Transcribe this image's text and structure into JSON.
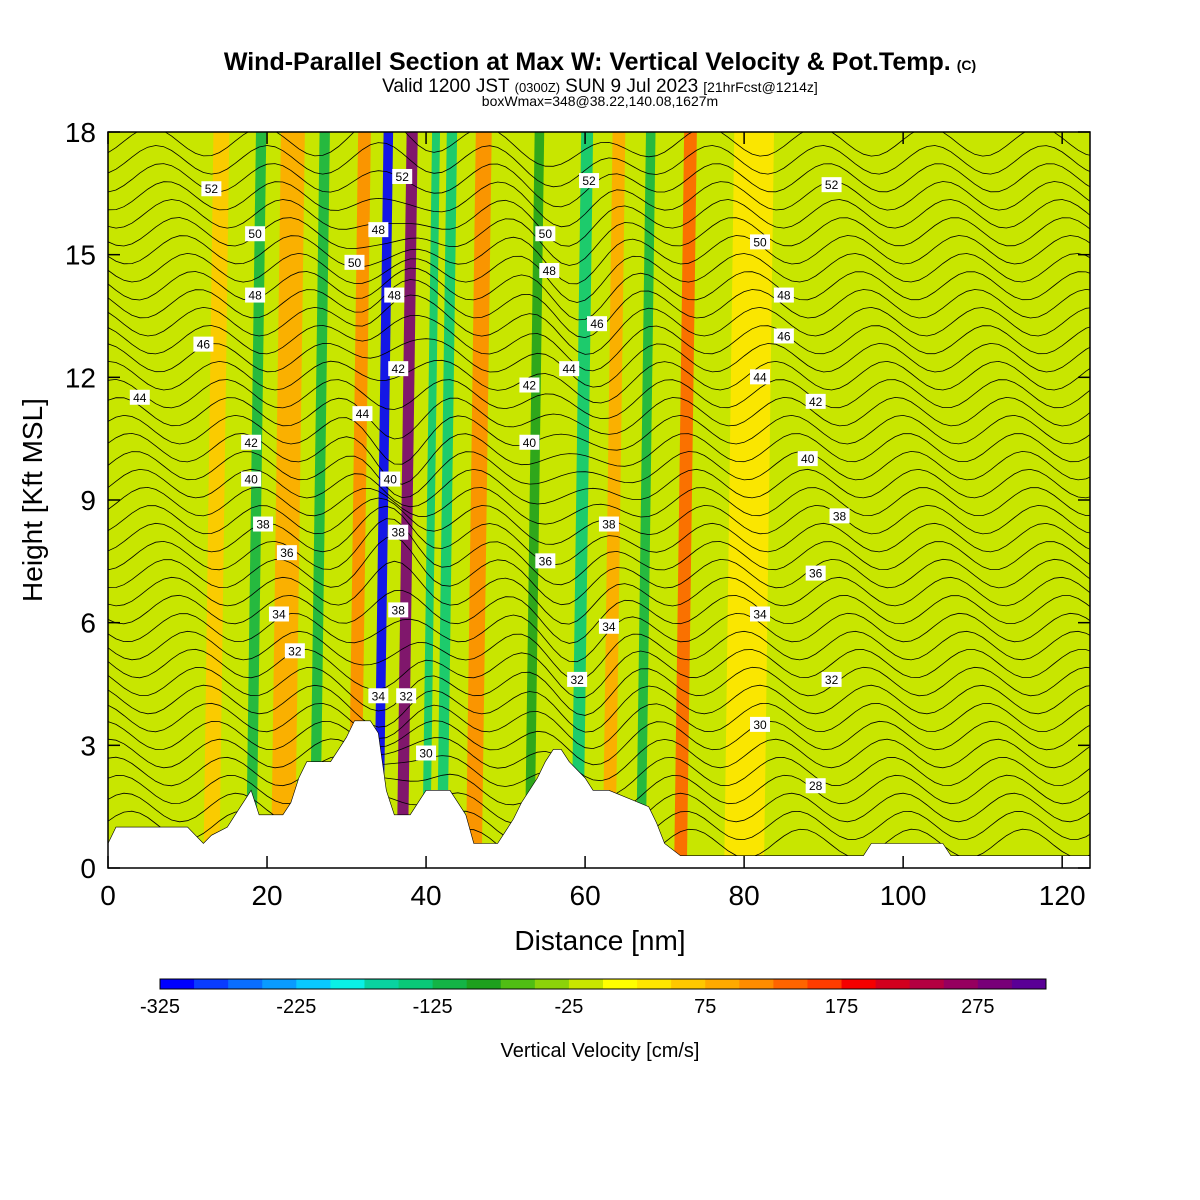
{
  "title": {
    "main": "Wind-Parallel Section at Max W: Vertical Velocity & Pot.Temp.",
    "copyright": "(C)",
    "valid_prefix": "Valid 1200 JST",
    "valid_utc": "(0300Z)",
    "valid_date": "SUN 9 Jul 2023",
    "forecast": "[21hrFcst@1214z]",
    "box_info": "boxWmax=348@38.22,140.08,1627m"
  },
  "chart_data": {
    "type": "heatmap",
    "xlabel": "Distance [nm]",
    "ylabel": "Height [Kft MSL]",
    "xlim": [
      0,
      123.5
    ],
    "ylim": [
      0,
      18
    ],
    "x_ticks": [
      0,
      20,
      40,
      60,
      80,
      100,
      120
    ],
    "x_tick_labels": [
      "0",
      "20",
      "40",
      "60",
      "80",
      "100",
      "120"
    ],
    "y_ticks": [
      0,
      3,
      6,
      9,
      12,
      15,
      18
    ],
    "y_tick_labels": [
      "0",
      "3",
      "6",
      "9",
      "12",
      "15",
      "18"
    ],
    "colorbar": {
      "label": "Vertical Velocity [cm/s]",
      "min": -325,
      "step": 25,
      "colors": [
        "#0000ff",
        "#0a3cff",
        "#0a6eff",
        "#0a9bff",
        "#0ac8ff",
        "#0af0e6",
        "#0ad2a0",
        "#0ac878",
        "#14b446",
        "#1ea01e",
        "#50be14",
        "#8cd20a",
        "#c8e600",
        "#ffff00",
        "#ffe600",
        "#ffc800",
        "#ffaa00",
        "#ff8c00",
        "#ff6400",
        "#ff3c00",
        "#f50000",
        "#d2001e",
        "#b40041",
        "#96005f",
        "#780078",
        "#5a0096"
      ],
      "tick_values": [
        -325,
        -225,
        -125,
        -25,
        75,
        175,
        275
      ],
      "tick_labels": [
        "-325",
        "-225",
        "-125",
        "-25",
        "75",
        "175",
        "275"
      ]
    },
    "vertical_velocity_bands": [
      {
        "x": 7,
        "w": 2.0,
        "value": -20
      },
      {
        "x": 13,
        "w": 2.0,
        "value": 60
      },
      {
        "x": 18,
        "w": 1.3,
        "value": -110
      },
      {
        "x": 22,
        "w": 3.0,
        "value": 90
      },
      {
        "x": 26,
        "w": 1.3,
        "value": -120
      },
      {
        "x": 31,
        "w": 1.6,
        "value": 120
      },
      {
        "x": 34,
        "w": 1.2,
        "value": -320
      },
      {
        "x": 37,
        "w": 1.4,
        "value": 290
      },
      {
        "x": 40,
        "w": 1.0,
        "value": -150
      },
      {
        "x": 42,
        "w": 1.3,
        "value": -140
      },
      {
        "x": 46,
        "w": 2.0,
        "value": 110
      },
      {
        "x": 53,
        "w": 1.2,
        "value": -100
      },
      {
        "x": 59,
        "w": 1.5,
        "value": -140
      },
      {
        "x": 63,
        "w": 1.6,
        "value": 90
      },
      {
        "x": 67,
        "w": 1.2,
        "value": -110
      },
      {
        "x": 72,
        "w": 1.6,
        "value": 140
      },
      {
        "x": 80,
        "w": 5.0,
        "value": 30
      },
      {
        "x": 95,
        "w": 3.0,
        "value": -20
      },
      {
        "x": 112,
        "w": 6.0,
        "value": -15
      }
    ],
    "terrain": {
      "x": [
        0,
        1,
        10,
        12,
        13,
        15,
        16,
        17,
        18,
        19,
        20,
        22,
        23,
        24,
        25,
        28,
        29,
        30,
        31,
        33,
        34,
        35,
        35.5,
        36,
        38,
        39,
        40,
        43,
        44,
        45,
        46,
        48,
        49,
        50,
        51,
        52,
        54,
        55,
        56,
        57,
        58,
        60,
        61,
        62,
        63,
        68,
        69,
        70,
        72,
        74,
        75,
        95,
        96,
        105,
        106,
        123.5
      ],
      "height": [
        0.6,
        1.0,
        1.0,
        0.6,
        0.8,
        1.0,
        1.3,
        1.6,
        1.9,
        1.3,
        1.3,
        1.3,
        1.6,
        2.2,
        2.6,
        2.6,
        2.9,
        3.2,
        3.6,
        3.6,
        3.3,
        1.9,
        1.6,
        1.3,
        1.3,
        1.6,
        1.9,
        1.9,
        1.6,
        1.3,
        0.6,
        0.6,
        0.6,
        0.9,
        1.2,
        1.6,
        2.2,
        2.6,
        2.9,
        2.9,
        2.6,
        2.2,
        1.9,
        1.9,
        1.9,
        1.5,
        1.1,
        0.6,
        0.3,
        0.3,
        0.3,
        0.3,
        0.6,
        0.6,
        0.3,
        0.3
      ]
    },
    "contour_labels": [
      {
        "x": 13,
        "y": 16.6,
        "text": "52"
      },
      {
        "x": 18.5,
        "y": 15.5,
        "text": "50"
      },
      {
        "x": 18.5,
        "y": 14.0,
        "text": "48"
      },
      {
        "x": 12,
        "y": 12.8,
        "text": "46"
      },
      {
        "x": 4,
        "y": 11.5,
        "text": "44"
      },
      {
        "x": 18,
        "y": 10.4,
        "text": "42"
      },
      {
        "x": 18,
        "y": 9.5,
        "text": "40"
      },
      {
        "x": 19.5,
        "y": 8.4,
        "text": "38"
      },
      {
        "x": 22.5,
        "y": 7.7,
        "text": "36"
      },
      {
        "x": 21.5,
        "y": 6.2,
        "text": "34"
      },
      {
        "x": 23.5,
        "y": 5.3,
        "text": "32"
      },
      {
        "x": 31,
        "y": 14.8,
        "text": "50"
      },
      {
        "x": 34,
        "y": 15.6,
        "text": "48"
      },
      {
        "x": 37,
        "y": 16.9,
        "text": "52"
      },
      {
        "x": 36,
        "y": 14.0,
        "text": "48"
      },
      {
        "x": 36.5,
        "y": 12.2,
        "text": "42"
      },
      {
        "x": 32,
        "y": 11.1,
        "text": "44"
      },
      {
        "x": 35.5,
        "y": 9.5,
        "text": "40"
      },
      {
        "x": 36.5,
        "y": 8.2,
        "text": "38"
      },
      {
        "x": 36.5,
        "y": 6.3,
        "text": "38"
      },
      {
        "x": 34,
        "y": 4.2,
        "text": "34"
      },
      {
        "x": 37.5,
        "y": 4.2,
        "text": "32"
      },
      {
        "x": 40,
        "y": 2.8,
        "text": "30"
      },
      {
        "x": 60.5,
        "y": 16.8,
        "text": "52"
      },
      {
        "x": 55,
        "y": 15.5,
        "text": "50"
      },
      {
        "x": 55.5,
        "y": 14.6,
        "text": "48"
      },
      {
        "x": 61.5,
        "y": 13.3,
        "text": "46"
      },
      {
        "x": 58,
        "y": 12.2,
        "text": "44"
      },
      {
        "x": 53,
        "y": 11.8,
        "text": "42"
      },
      {
        "x": 53,
        "y": 10.4,
        "text": "40"
      },
      {
        "x": 63,
        "y": 8.4,
        "text": "38"
      },
      {
        "x": 55,
        "y": 7.5,
        "text": "36"
      },
      {
        "x": 63,
        "y": 5.9,
        "text": "34"
      },
      {
        "x": 59,
        "y": 4.6,
        "text": "32"
      },
      {
        "x": 91,
        "y": 16.7,
        "text": "52"
      },
      {
        "x": 82,
        "y": 15.3,
        "text": "50"
      },
      {
        "x": 85,
        "y": 14.0,
        "text": "48"
      },
      {
        "x": 85,
        "y": 13.0,
        "text": "46"
      },
      {
        "x": 82,
        "y": 12.0,
        "text": "44"
      },
      {
        "x": 89,
        "y": 11.4,
        "text": "42"
      },
      {
        "x": 88,
        "y": 10.0,
        "text": "40"
      },
      {
        "x": 92,
        "y": 8.6,
        "text": "38"
      },
      {
        "x": 89,
        "y": 7.2,
        "text": "36"
      },
      {
        "x": 82,
        "y": 6.2,
        "text": "34"
      },
      {
        "x": 91,
        "y": 4.6,
        "text": "32"
      },
      {
        "x": 82,
        "y": 3.5,
        "text": "30"
      },
      {
        "x": 89,
        "y": 2.0,
        "text": "28"
      }
    ]
  }
}
